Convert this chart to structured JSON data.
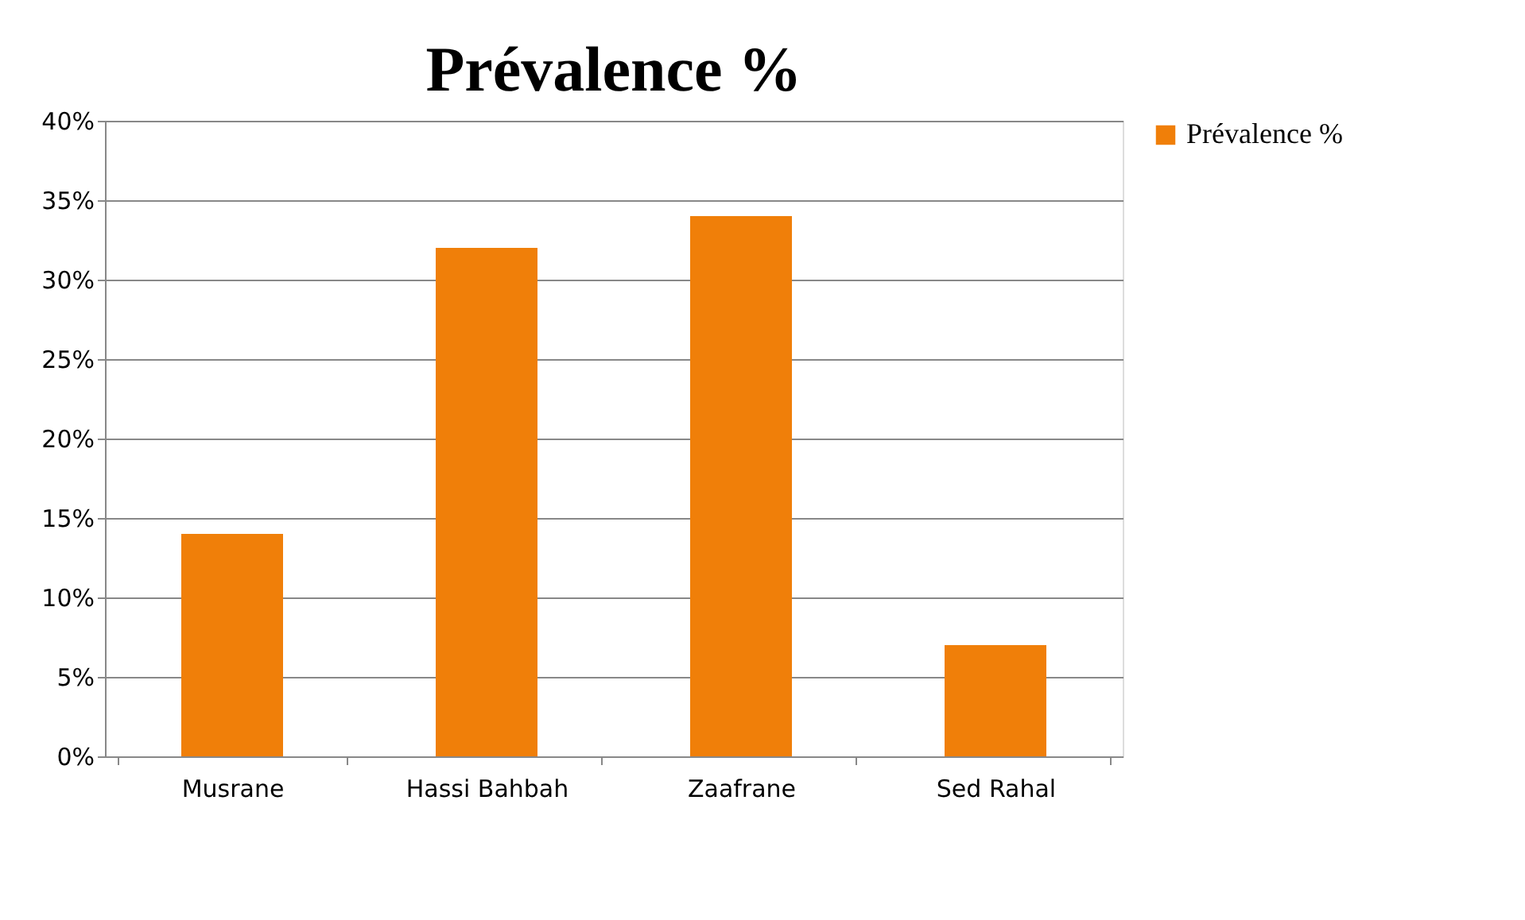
{
  "chart_data": {
    "type": "bar",
    "title": "Prévalence %",
    "categories": [
      "Musrane",
      "Hassi Bahbah",
      "Zaafrane",
      "Sed Rahal"
    ],
    "series": [
      {
        "name": "Prévalence %",
        "color": "#f07f09",
        "values": [
          14,
          32,
          34,
          7
        ]
      }
    ],
    "ylim": [
      0,
      40
    ],
    "yticks": [
      {
        "value": 0,
        "label": "0%"
      },
      {
        "value": 5,
        "label": "5%"
      },
      {
        "value": 10,
        "label": "10%"
      },
      {
        "value": 15,
        "label": "15%"
      },
      {
        "value": 20,
        "label": "20%"
      },
      {
        "value": 25,
        "label": "25%"
      },
      {
        "value": 30,
        "label": "30%"
      },
      {
        "value": 35,
        "label": "35%"
      },
      {
        "value": 40,
        "label": "40%"
      }
    ],
    "grid": "y",
    "legend": "right"
  }
}
